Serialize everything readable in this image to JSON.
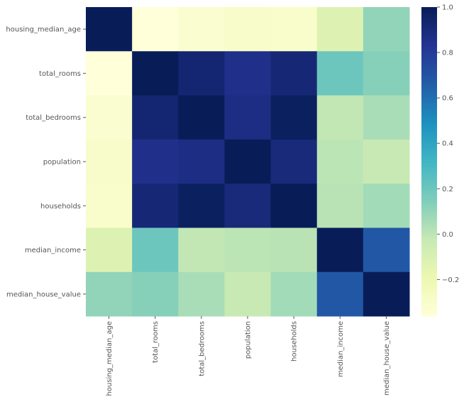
{
  "chart_data": {
    "type": "heatmap",
    "title": "",
    "labels": [
      "housing_median_age",
      "total_rooms",
      "total_bedrooms",
      "population",
      "households",
      "median_income",
      "median_house_value"
    ],
    "values": [
      [
        1.0,
        -0.361,
        -0.317,
        -0.296,
        -0.303,
        -0.119,
        0.106
      ],
      [
        -0.361,
        1.0,
        0.93,
        0.857,
        0.918,
        0.198,
        0.134
      ],
      [
        -0.317,
        0.93,
        1.0,
        0.878,
        0.98,
        -0.008,
        0.05
      ],
      [
        -0.296,
        0.857,
        0.878,
        1.0,
        0.907,
        0.005,
        -0.025
      ],
      [
        -0.303,
        0.918,
        0.98,
        0.907,
        1.0,
        0.013,
        0.066
      ],
      [
        -0.119,
        0.198,
        -0.008,
        0.005,
        0.013,
        1.0,
        0.688
      ],
      [
        0.106,
        0.134,
        0.05,
        -0.025,
        0.066,
        0.688,
        1.0
      ]
    ],
    "colormap": "YlGnBu",
    "colorbar": {
      "range": [
        -0.361,
        1.0
      ],
      "ticks": [
        -0.2,
        0.0,
        0.2,
        0.4,
        0.6,
        0.8,
        1.0
      ],
      "tick_labels": [
        "−0.2",
        "0.0",
        "0.2",
        "0.4",
        "0.6",
        "0.8",
        "1.0"
      ]
    }
  }
}
